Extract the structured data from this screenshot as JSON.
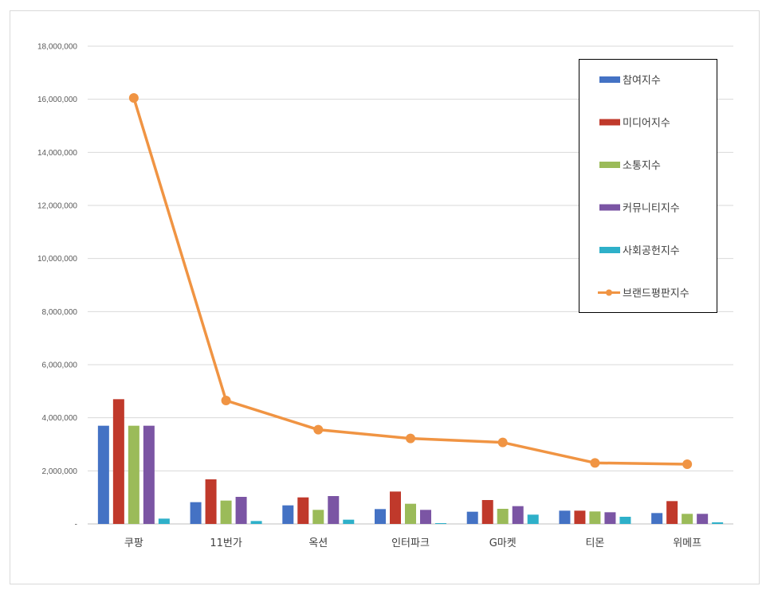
{
  "chart_data": {
    "type": "bar",
    "categories": [
      "쿠팡",
      "11번가",
      "옥션",
      "인터파크",
      "G마켓",
      "티몬",
      "위메프"
    ],
    "ylim": [
      0,
      18000000
    ],
    "y_ticks": [
      "-",
      "2,000,000",
      "4,000,000",
      "6,000,000",
      "8,000,000",
      "10,000,000",
      "12,000,000",
      "14,000,000",
      "16,000,000",
      "18,000,000"
    ],
    "y_tick_values": [
      0,
      2000000,
      4000000,
      6000000,
      8000000,
      10000000,
      12000000,
      14000000,
      16000000,
      18000000
    ],
    "grid": true,
    "legend_position": "top-right",
    "series": [
      {
        "name": "참여지수",
        "kind": "bar",
        "color": "#4472c4",
        "values": [
          3700000,
          820000,
          700000,
          560000,
          460000,
          500000,
          410000
        ]
      },
      {
        "name": "미디어지수",
        "kind": "bar",
        "color": "#c0392b",
        "values": [
          4700000,
          1680000,
          1000000,
          1220000,
          900000,
          500000,
          860000
        ]
      },
      {
        "name": "소통지수",
        "kind": "bar",
        "color": "#9bbb59",
        "values": [
          3700000,
          880000,
          530000,
          760000,
          570000,
          470000,
          380000
        ]
      },
      {
        "name": "커뮤니티지수",
        "kind": "bar",
        "color": "#7b55a4",
        "values": [
          3700000,
          1020000,
          1050000,
          530000,
          670000,
          440000,
          380000
        ]
      },
      {
        "name": "사회공헌지수",
        "kind": "bar",
        "color": "#2eb0c9",
        "values": [
          200000,
          110000,
          160000,
          30000,
          350000,
          270000,
          60000
        ]
      },
      {
        "name": "브랜드평판지수",
        "kind": "line",
        "color": "#f09443",
        "values": [
          16050000,
          4650000,
          3550000,
          3220000,
          3070000,
          2300000,
          2250000
        ]
      }
    ]
  }
}
